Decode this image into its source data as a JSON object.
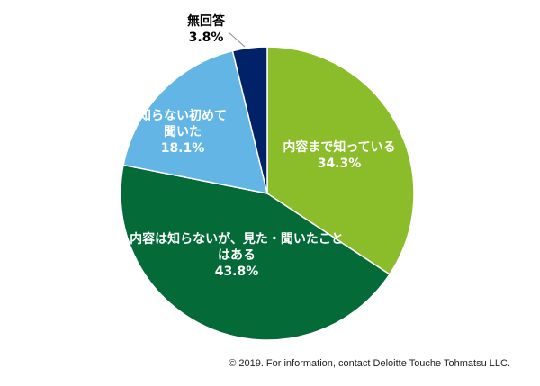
{
  "chart_data": {
    "type": "pie",
    "start": "12 o'clock",
    "direction": "clockwise",
    "slices": [
      {
        "label": [
          "内容まで知っている"
        ],
        "value_label": "34.3%",
        "value": 34.3,
        "color": "#8bbd2b",
        "label_color": "#ffffff",
        "label_position": "inside"
      },
      {
        "label": [
          "内容は知らないが、見た・聞いたこと",
          "はある"
        ],
        "value_label": "43.8%",
        "value": 43.8,
        "color": "#046a38",
        "label_color": "#ffffff",
        "label_position": "inside"
      },
      {
        "label": [
          "知らない初めて",
          "聞いた"
        ],
        "value_label": "18.1%",
        "value": 18.1,
        "color": "#62b5e5",
        "label_color": "#ffffff",
        "label_position": "inside"
      },
      {
        "label": [
          "無回答"
        ],
        "value_label": "3.8%",
        "value": 3.8,
        "color": "#012169",
        "label_color": "#000000",
        "label_position": "outside"
      }
    ]
  },
  "footer": "© 2019. For information, contact Deloitte Touche Tohmatsu LLC."
}
